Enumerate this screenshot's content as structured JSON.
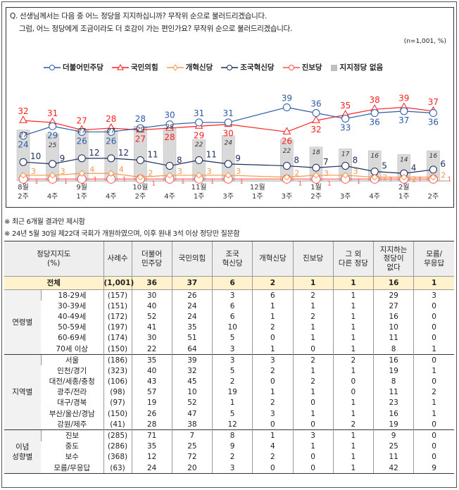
{
  "question": {
    "line1": "Q. 선생님께서는 다음 중 어느 정당을 지지하십니까? 무작위 순으로 불러드리겠습니다.",
    "line2": "그럼, 어느 정당에게 조금이라도 더 호감이 가는 편인가요? 무작위 순으로 불러드리겠습니다.",
    "sample_note": "(n=1,001, %)"
  },
  "chart_data": {
    "type": "line+bar",
    "categories": [
      [
        "8월",
        "2주"
      ],
      [
        "",
        "4주"
      ],
      [
        "9월",
        "1주"
      ],
      [
        "",
        "4주"
      ],
      [
        "10월",
        "2주"
      ],
      [
        "",
        "4주"
      ],
      [
        "11월",
        "1주"
      ],
      [
        "",
        "3주"
      ],
      [
        "12월",
        "1주"
      ],
      [
        "",
        "3주"
      ],
      [
        "1월",
        "2주"
      ],
      [
        "",
        "3주"
      ],
      [
        "",
        "4주"
      ],
      [
        "2월",
        "1주"
      ],
      [
        "",
        "2주"
      ]
    ],
    "ylim": [
      0,
      45
    ],
    "series": [
      {
        "name": "더불어민주당",
        "kind": "line",
        "color": "#2e5aa8",
        "marker": "circle",
        "values": [
          24,
          29,
          26,
          26,
          28,
          30,
          31,
          31,
          null,
          39,
          36,
          33,
          36,
          37,
          36
        ]
      },
      {
        "name": "국민의힘",
        "kind": "line",
        "color": "#ff1f1f",
        "marker": "triangle",
        "values": [
          32,
          31,
          27,
          28,
          27,
          28,
          29,
          30,
          null,
          26,
          32,
          35,
          38,
          39,
          37
        ]
      },
      {
        "name": "개혁신당",
        "kind": "line",
        "color": "#f79646",
        "marker": "diamond",
        "values": [
          3,
          3,
          4,
          4,
          2,
          3,
          3,
          3,
          null,
          2,
          3,
          3,
          2,
          2,
          2
        ]
      },
      {
        "name": "조국혁신당",
        "kind": "line",
        "color": "#1f2d5c",
        "marker": "circle",
        "values": [
          10,
          9,
          12,
          12,
          11,
          8,
          11,
          9,
          null,
          8,
          7,
          8,
          5,
          4,
          6
        ]
      },
      {
        "name": "진보당",
        "kind": "line",
        "color": "#ff5050",
        "marker": "circle",
        "values": [
          1,
          1,
          1,
          1,
          1,
          1,
          1,
          1,
          null,
          1,
          1,
          1,
          1,
          1,
          1
        ]
      },
      {
        "name": "지지정당 없음",
        "kind": "bar",
        "color": "#d9d9d9",
        "values": [
          27,
          25,
          27,
          27,
          29,
          28,
          22,
          24,
          null,
          22,
          18,
          17,
          16,
          14,
          16
        ]
      }
    ]
  },
  "notes": [
    "※ 최근 6개월 결과만 제시함",
    "※ 24년 5월 30일 제22대 국회가 개원하였으며, 이후 원내 3석 이상 정당만 질문함"
  ],
  "table": {
    "header": [
      "정당지지도\n(%)",
      "사례수",
      "더불어\n민주당",
      "국민의힘",
      "조국\n혁신당",
      "개혁신당",
      "진보당",
      "그 외\n다른 정당",
      "지지하는\n정당이\n없다",
      "모름/\n무응답"
    ],
    "total": [
      "전체",
      "(1,001)",
      "36",
      "37",
      "6",
      "2",
      "1",
      "1",
      "16",
      "1"
    ],
    "groups": [
      {
        "label": "연령별",
        "rows": [
          [
            "18-29세",
            "(157)",
            "30",
            "26",
            "3",
            "6",
            "2",
            "1",
            "29",
            "3"
          ],
          [
            "30-39세",
            "(151)",
            "40",
            "24",
            "6",
            "1",
            "1",
            "1",
            "27",
            "0"
          ],
          [
            "40-49세",
            "(172)",
            "52",
            "24",
            "6",
            "1",
            "2",
            "1",
            "16",
            "0"
          ],
          [
            "50-59세",
            "(197)",
            "41",
            "35",
            "10",
            "2",
            "1",
            "1",
            "10",
            "0"
          ],
          [
            "60-69세",
            "(174)",
            "30",
            "51",
            "5",
            "0",
            "1",
            "1",
            "11",
            "0"
          ],
          [
            "70세 이상",
            "(150)",
            "22",
            "64",
            "3",
            "1",
            "0",
            "1",
            "8",
            "1"
          ]
        ]
      },
      {
        "label": "지역별",
        "rows": [
          [
            "서울",
            "(186)",
            "35",
            "39",
            "3",
            "3",
            "2",
            "2",
            "16",
            "0"
          ],
          [
            "인천/경기",
            "(323)",
            "40",
            "32",
            "5",
            "2",
            "1",
            "1",
            "19",
            "1"
          ],
          [
            "대전/세종/충청",
            "(106)",
            "43",
            "45",
            "2",
            "0",
            "2",
            "0",
            "8",
            "0"
          ],
          [
            "광주/전라",
            "(98)",
            "57",
            "10",
            "19",
            "1",
            "1",
            "0",
            "11",
            "2"
          ],
          [
            "대구/경북",
            "(97)",
            "19",
            "52",
            "1",
            "2",
            "0",
            "1",
            "23",
            "1"
          ],
          [
            "부산/울산/경남",
            "(150)",
            "26",
            "47",
            "5",
            "3",
            "1",
            "1",
            "16",
            "1"
          ],
          [
            "강원/제주",
            "(41)",
            "28",
            "38",
            "12",
            "0",
            "0",
            "2",
            "19",
            "0"
          ]
        ]
      },
      {
        "label": "이념\n성향별",
        "rows": [
          [
            "진보",
            "(285)",
            "71",
            "7",
            "8",
            "1",
            "3",
            "1",
            "9",
            "0"
          ],
          [
            "중도",
            "(286)",
            "35",
            "25",
            "9",
            "4",
            "1",
            "1",
            "25",
            "0"
          ],
          [
            "보수",
            "(368)",
            "12",
            "72",
            "2",
            "2",
            "0",
            "1",
            "11",
            "0"
          ],
          [
            "모름/무응답",
            "(63)",
            "24",
            "20",
            "3",
            "0",
            "0",
            "1",
            "42",
            "9"
          ]
        ]
      }
    ]
  }
}
